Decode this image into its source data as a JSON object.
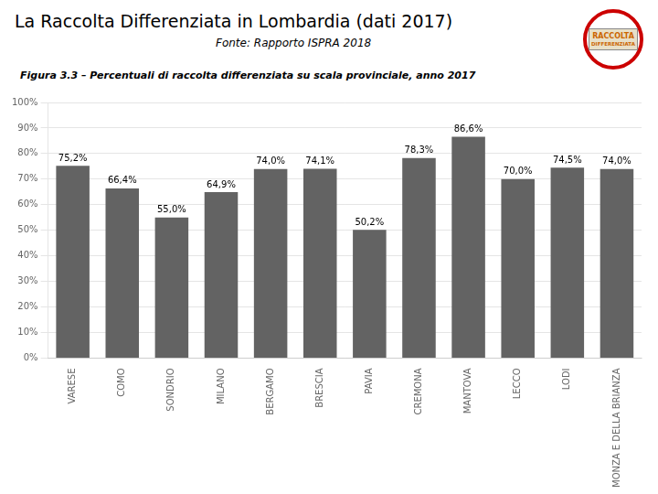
{
  "chart_data": {
    "type": "bar",
    "title": "La Raccolta Differenziata in Lombardia (dati 2017)",
    "subtitle": "Fonte: Rapporto ISPRA 2018",
    "annotations": [
      "Figura 3.3 – Percentuali di raccolta differenziata su scala provinciale, anno 2017",
      "RACCOLTA",
      "DIFFERENZIATA"
    ],
    "categories": [
      "VARESE",
      "COMO",
      "SONDRIO",
      "MILANO",
      "BERGAMO",
      "BRESCIA",
      "PAVIA",
      "CREMONA",
      "MANTOVA",
      "LECCO",
      "LODI",
      "MONZA E DELLA BRIANZA"
    ],
    "values": [
      75.2,
      66.4,
      55.0,
      64.9,
      74.0,
      74.1,
      50.2,
      78.3,
      86.6,
      70.0,
      74.5,
      74.0
    ],
    "value_labels": [
      "75,2%",
      "66,4%",
      "55,0%",
      "64,9%",
      "74,0%",
      "74,1%",
      "50,2%",
      "78,3%",
      "86,6%",
      "70,0%",
      "74,5%",
      "74,0%"
    ],
    "data_labels": true,
    "color": "#636363",
    "ylim": [
      0,
      100
    ],
    "yticks": [
      {
        "value": 0,
        "label": "0%"
      },
      {
        "value": 10,
        "label": "10%"
      },
      {
        "value": 20,
        "label": "20%"
      },
      {
        "value": 30,
        "label": "30%"
      },
      {
        "value": 40,
        "label": "40%"
      },
      {
        "value": 50,
        "label": "50%"
      },
      {
        "value": 60,
        "label": "60%"
      },
      {
        "value": 70,
        "label": "70%"
      },
      {
        "value": 80,
        "label": "80%"
      },
      {
        "value": 90,
        "label": "90%"
      },
      {
        "value": 100,
        "label": "100%"
      }
    ],
    "grid": true
  }
}
